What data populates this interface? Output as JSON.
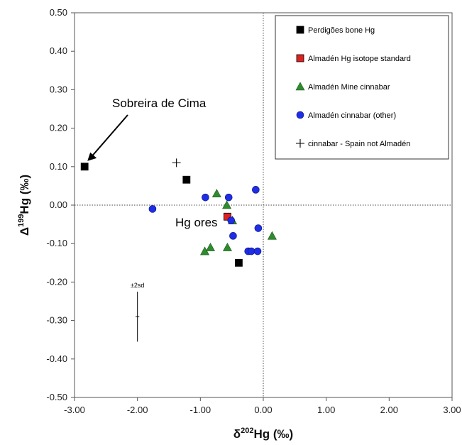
{
  "chart_data": {
    "type": "scatter",
    "xlabel": {
      "prefix": "δ",
      "sup": "202",
      "suffix": "Hg (‰)"
    },
    "ylabel": {
      "prefix": "Δ",
      "sup": "199",
      "suffix": "Hg (‰)"
    },
    "xlim": [
      -3.0,
      3.0
    ],
    "ylim": [
      -0.5,
      0.5
    ],
    "x_ticks": [
      -3.0,
      -2.0,
      -1.0,
      0.0,
      1.0,
      2.0,
      3.0
    ],
    "x_tick_labels": [
      "-3.00",
      "-2.00",
      "-1.00",
      "0.00",
      "1.00",
      "2.00",
      "3.00"
    ],
    "y_ticks": [
      0.5,
      0.4,
      0.3,
      0.2,
      0.1,
      0.0,
      -0.1,
      -0.2,
      -0.3,
      -0.4,
      -0.5
    ],
    "y_tick_labels": [
      "0.50",
      "0.40",
      "0.30",
      "0.20",
      "0.10",
      "0.00",
      "-0.10",
      "-0.20",
      "-0.30",
      "-0.40",
      "-0.50"
    ],
    "reference_lines": {
      "x": 0.0,
      "y": 0.0,
      "style": "dotted"
    },
    "legend_position": "top-right",
    "series": [
      {
        "name": "Perdigões bone Hg",
        "marker": "square",
        "color": "#000000",
        "points": [
          [
            -2.84,
            0.1
          ],
          [
            -1.22,
            0.066
          ],
          [
            -0.39,
            -0.15
          ]
        ]
      },
      {
        "name": "Almadén Hg isotope standard",
        "marker": "square",
        "color": "#dd2222",
        "points": [
          [
            -0.57,
            -0.03
          ]
        ]
      },
      {
        "name": "Almadén Mine cinnabar",
        "marker": "triangle",
        "color": "#2e8b2e",
        "points": [
          [
            -0.74,
            0.03
          ],
          [
            -0.58,
            0.0
          ],
          [
            -0.49,
            -0.04
          ],
          [
            -0.93,
            -0.12
          ],
          [
            -0.84,
            -0.11
          ],
          [
            -0.57,
            -0.11
          ],
          [
            0.14,
            -0.08
          ]
        ]
      },
      {
        "name": "Almadén cinnabar (other)",
        "marker": "circle",
        "color": "#1f2ee6",
        "points": [
          [
            -1.76,
            -0.01
          ],
          [
            -0.92,
            0.02
          ],
          [
            -0.55,
            0.02
          ],
          [
            -0.12,
            0.04
          ],
          [
            -0.51,
            -0.04
          ],
          [
            -0.48,
            -0.08
          ],
          [
            -0.08,
            -0.06
          ],
          [
            -0.24,
            -0.12
          ],
          [
            -0.19,
            -0.12
          ],
          [
            -0.09,
            -0.12
          ]
        ]
      },
      {
        "name": "cinnabar - Spain not Almadén",
        "marker": "plus",
        "color": "#000000",
        "points": [
          [
            -1.38,
            0.11
          ]
        ]
      }
    ],
    "error_bar": {
      "label": "±2sd",
      "x": -2.0,
      "y": -0.29,
      "y_err": 0.065,
      "x_err": 0.03
    },
    "annotations": [
      {
        "text": "Sobreira de Cima",
        "points_to": [
          -2.84,
          0.1
        ]
      },
      {
        "text": "Hg ores"
      }
    ]
  }
}
